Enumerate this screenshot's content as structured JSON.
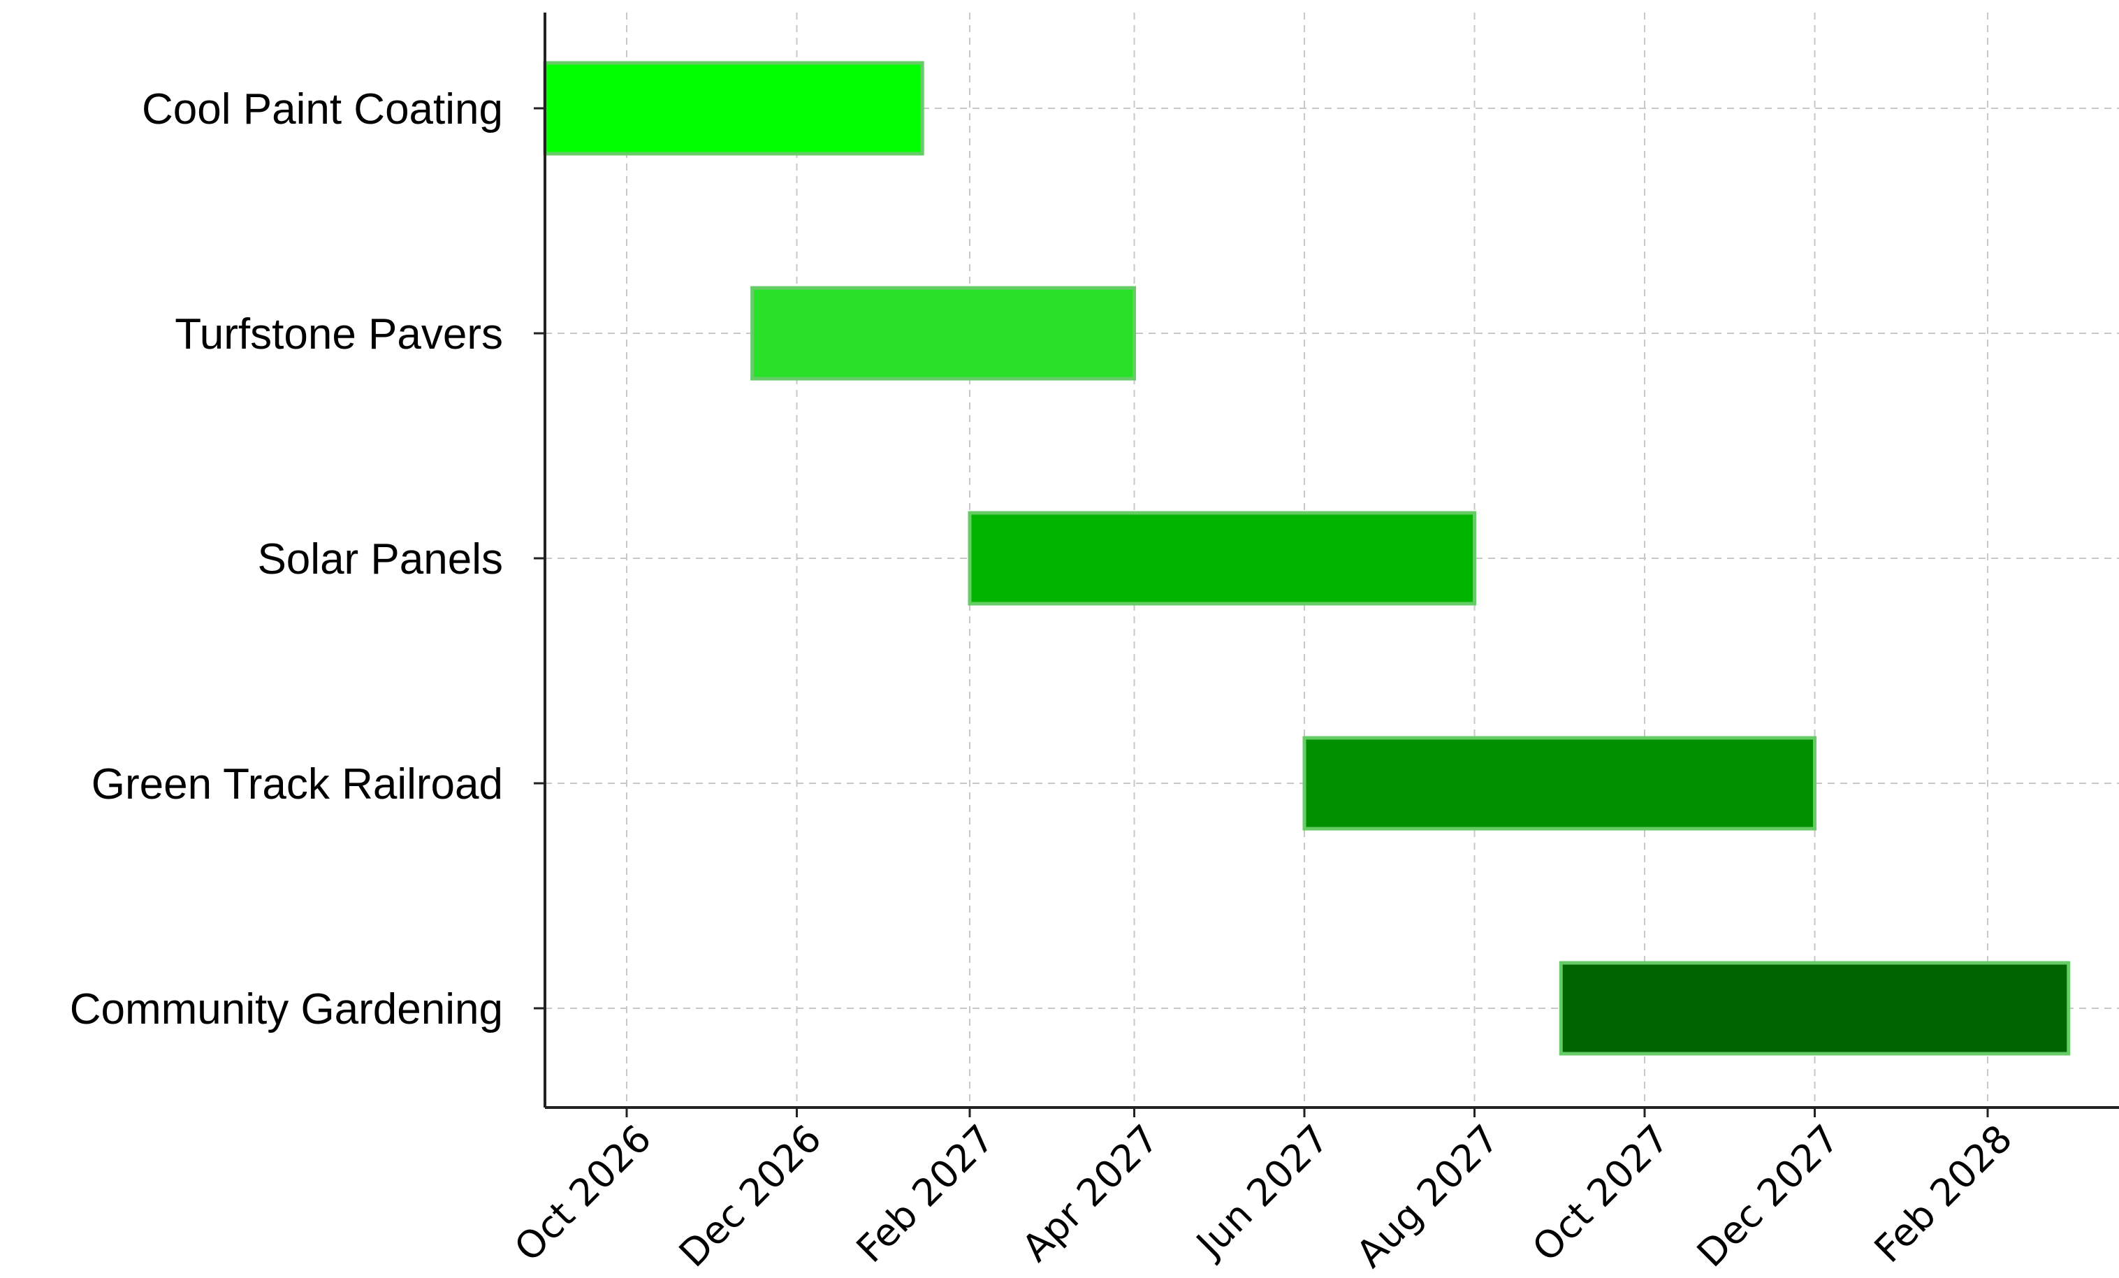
{
  "chart_data": {
    "type": "bar",
    "subtype": "gantt",
    "orientation": "horizontal",
    "x_axis_type": "date",
    "xlim": [
      "2026-08-15",
      "2028-04-15"
    ],
    "grid": true,
    "categories": [
      "Cool Paint Coating",
      "Turfstone Pavers",
      "Solar Panels",
      "Green Track Railroad",
      "Community Gardening"
    ],
    "tasks": [
      {
        "name": "Cool Paint Coating",
        "start": "2026-08-15",
        "end": "2027-01-15",
        "color": "#00ff00"
      },
      {
        "name": "Turfstone Pavers",
        "start": "2026-11-15",
        "end": "2027-04-01",
        "color": "#28e028"
      },
      {
        "name": "Solar Panels",
        "start": "2027-02-01",
        "end": "2027-08-01",
        "color": "#00b400"
      },
      {
        "name": "Green Track Railroad",
        "start": "2027-06-01",
        "end": "2027-12-01",
        "color": "#009000"
      },
      {
        "name": "Community Gardening",
        "start": "2027-09-01",
        "end": "2028-03-01",
        "color": "#006400"
      }
    ],
    "x_ticks": [
      {
        "date": "2026-10-01",
        "label": "Oct 2026"
      },
      {
        "date": "2026-12-01",
        "label": "Dec 2026"
      },
      {
        "date": "2027-02-01",
        "label": "Feb 2027"
      },
      {
        "date": "2027-04-01",
        "label": "Apr 2027"
      },
      {
        "date": "2027-06-01",
        "label": "Jun 2027"
      },
      {
        "date": "2027-08-01",
        "label": "Aug 2027"
      },
      {
        "date": "2027-10-01",
        "label": "Oct 2027"
      },
      {
        "date": "2027-12-01",
        "label": "Dec 2027"
      },
      {
        "date": "2028-02-01",
        "label": "Feb 2028"
      }
    ],
    "bar_edge_color": "#66cc66",
    "grid_color": "#c8c8c8",
    "axis_color": "#222222"
  }
}
